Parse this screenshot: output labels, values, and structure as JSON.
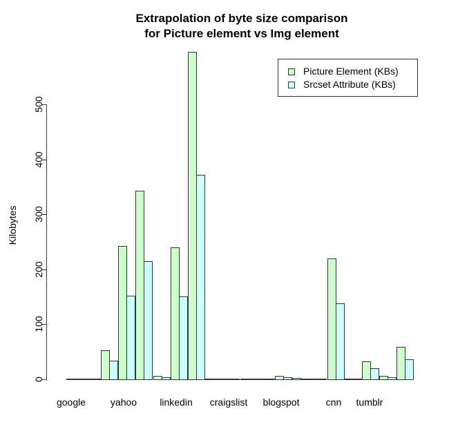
{
  "chart_data": {
    "type": "bar",
    "title": "Extrapolation of byte size comparison\nfor Picture element vs Img element",
    "title_lines": [
      "Extrapolation of byte size comparison",
      "for Picture element vs Img element"
    ],
    "xlabel": "",
    "ylabel": "Kilobytes",
    "ylim": [
      0,
      600
    ],
    "yticks": [
      0,
      100,
      200,
      300,
      400,
      500
    ],
    "grid": false,
    "legend_position": "top-right",
    "categories": [
      "google",
      "",
      "",
      "yahoo",
      "",
      "",
      "linkedin",
      "",
      "craigslist",
      "",
      "",
      "blogspot",
      "",
      "",
      "",
      "cnn",
      "",
      "tumblr",
      "",
      ""
    ],
    "visible_x_labels": [
      "google",
      "yahoo",
      "linkedin",
      "craigslist",
      "blogspot",
      "cnn",
      "tumblr"
    ],
    "series": [
      {
        "name": "Picture Element (KBs)",
        "color": "#ccffcc",
        "values": [
          1,
          1,
          53,
          243,
          343,
          6,
          240,
          595,
          0,
          0,
          0,
          0,
          6,
          2,
          0,
          220,
          1,
          33,
          6,
          59
        ]
      },
      {
        "name": "Srcset Attribute (KBs)",
        "color": "#ccffff",
        "values": [
          1,
          1,
          34,
          152,
          215,
          4,
          151,
          372,
          0,
          0,
          0,
          0,
          4,
          1,
          0,
          138,
          1,
          20,
          4,
          37
        ]
      }
    ]
  },
  "legend": {
    "items": [
      {
        "label": "Picture Element (KBs)",
        "color": "#ccffcc"
      },
      {
        "label": "Srcset Attribute (KBs)",
        "color": "#ccffff"
      }
    ]
  }
}
